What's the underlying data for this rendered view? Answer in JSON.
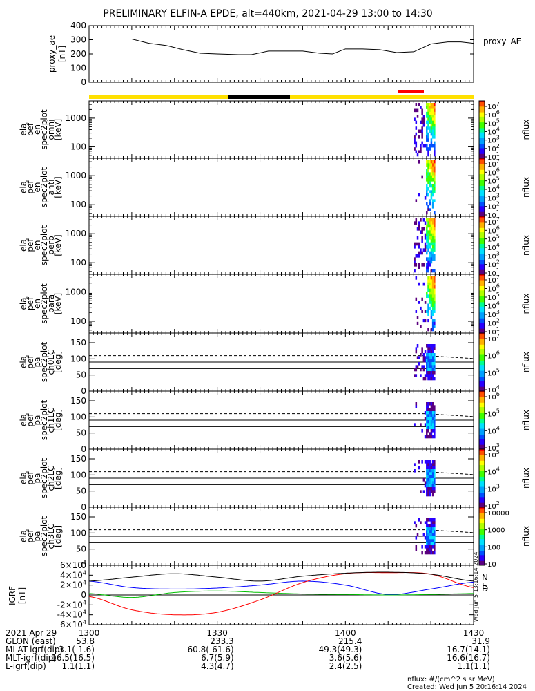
{
  "title": "PRELIMINARY ELFIN-A EPDE, alt=440km, 2021-04-29 13:00 to 14:30",
  "colors": {
    "yellow_bar": "#ffe000",
    "black_bar": "#000000",
    "red_bar": "#ff0000",
    "igrf_n": "#0000ff",
    "igrf_e": "#00c000",
    "igrf_d": "#ff0000",
    "igrf_total": "#000000"
  },
  "footer": {
    "rows": [
      {
        "label": "2021 Apr 29",
        "values": [
          "1300",
          "1330",
          "1400",
          "1430"
        ]
      },
      {
        "label": "GLON (east)",
        "values": [
          "53.8",
          "233.3",
          "215.4",
          "31.9"
        ]
      },
      {
        "label": "MLAT-igrf(dip)",
        "values": [
          "3.1(-1.6)",
          "-60.8(-61.6)",
          "49.3(49.3)",
          "16.7(14.1)"
        ]
      },
      {
        "label": "MLT-igrf(dip)",
        "values": [
          "16.5(16.5)",
          "6.7(5.9)",
          "3.6(5.6)",
          "16.6(16.7)"
        ]
      },
      {
        "label": "L-igrf(dip)",
        "values": [
          "1.1(1.1)",
          "4.3(4.7)",
          "2.4(2.5)",
          "1.1(1.1)"
        ]
      }
    ],
    "units_note": "nflux: #/(cm^2 s sr MeV)",
    "created": "Created: Wed Jun  5 20:16:14 2024",
    "vertical_stamp": "Wed Jun  5 13:16:14 2024"
  },
  "chart_data": [
    {
      "type": "line",
      "name": "proxy_AE",
      "ylabel": "proxy_ae [nT]",
      "legend": "proxy_AE",
      "ylim": [
        0,
        400
      ],
      "yticks": [
        "0",
        "100",
        "200",
        "300",
        "400"
      ],
      "x_minutes": [
        0,
        5,
        10,
        14,
        18,
        22,
        26,
        30,
        35,
        38,
        42,
        46,
        50,
        54,
        57,
        60,
        64,
        68,
        72,
        76,
        80,
        84,
        87,
        90
      ],
      "values": [
        305,
        305,
        305,
        275,
        260,
        230,
        205,
        200,
        195,
        195,
        220,
        220,
        220,
        205,
        200,
        235,
        235,
        230,
        210,
        215,
        270,
        285,
        285,
        275
      ]
    },
    {
      "type": "heatmap",
      "name": "ela_pef_en_spec2plot_omni",
      "ylabel": "ela pef en spec2plot omni [keV]",
      "yscale": "log",
      "yticks": [
        "100",
        "1000"
      ],
      "colorbar_ticks": [
        "10^7",
        "10^6",
        "10^5",
        "10^4",
        "10^3",
        "10^2",
        "10^1"
      ],
      "colorbar_label": "nflux",
      "active_interval_minutes": [
        76,
        81
      ]
    },
    {
      "type": "heatmap",
      "name": "ela_pef_en_spec2plot_anti",
      "ylabel": "ela pef en spec2plot anti [keV]",
      "yscale": "log",
      "yticks": [
        "100",
        "1000"
      ],
      "colorbar_ticks": [
        "10^7",
        "10^6",
        "10^5",
        "10^4",
        "10^3",
        "10^2",
        "10^1"
      ],
      "colorbar_label": "nflux",
      "active_interval_minutes": [
        76,
        81
      ]
    },
    {
      "type": "heatmap",
      "name": "ela_pef_en_spec2plot_perp",
      "ylabel": "ela pef en spec2plot perp [keV]",
      "yscale": "log",
      "yticks": [
        "100",
        "1000"
      ],
      "colorbar_ticks": [
        "10^7",
        "10^6",
        "10^5",
        "10^4",
        "10^3",
        "10^2",
        "10^1"
      ],
      "colorbar_label": "nflux",
      "active_interval_minutes": [
        76,
        81
      ]
    },
    {
      "type": "heatmap",
      "name": "ela_pef_en_spec2plot_para",
      "ylabel": "ela pef en spec2plot para [keV]",
      "yscale": "log",
      "yticks": [
        "100",
        "1000"
      ],
      "colorbar_ticks": [
        "10^7",
        "10^6",
        "10^5",
        "10^4",
        "10^3",
        "10^2",
        "10^1"
      ],
      "colorbar_label": "nflux",
      "active_interval_minutes": [
        76,
        81
      ]
    },
    {
      "type": "heatmap",
      "name": "ela_pef_pa_spec2plot_ch0LC",
      "ylabel": "ela pef pa spec2plot ch0LC [deg]",
      "yticks": [
        "0",
        "50",
        "100",
        "150"
      ],
      "ylim": [
        0,
        180
      ],
      "colorbar_ticks": [
        "10^7",
        "10^6",
        "10^5",
        "10^4"
      ],
      "colorbar_label": "nflux",
      "active_interval_minutes": [
        76,
        81
      ]
    },
    {
      "type": "heatmap",
      "name": "ela_pef_pa_spec2plot_ch1LC",
      "ylabel": "ela pef pa spec2plot ch1LC [deg]",
      "yticks": [
        "0",
        "50",
        "100",
        "150"
      ],
      "ylim": [
        0,
        180
      ],
      "colorbar_ticks": [
        "10^6",
        "10^5",
        "10^4",
        "10^3"
      ],
      "colorbar_label": "nflux",
      "active_interval_minutes": [
        76,
        81
      ]
    },
    {
      "type": "heatmap",
      "name": "ela_pef_pa_spec2plot_ch2LC",
      "ylabel": "ela pef pa spec2plot ch2LC [deg]",
      "yticks": [
        "0",
        "50",
        "100",
        "150"
      ],
      "ylim": [
        0,
        180
      ],
      "colorbar_ticks": [
        "10^5",
        "10^4",
        "10^3",
        "10^2"
      ],
      "colorbar_label": "nflux",
      "active_interval_minutes": [
        76,
        81
      ]
    },
    {
      "type": "heatmap",
      "name": "ela_pef_pa_spec2plot_ch3LC",
      "ylabel": "ela pef pa spec2plot ch3LC [deg]",
      "yticks": [
        "0",
        "50",
        "100",
        "150"
      ],
      "ylim": [
        0,
        180
      ],
      "colorbar_ticks": [
        "10000",
        "1000",
        "100",
        "10"
      ],
      "colorbar_label": "nflux",
      "active_interval_minutes": [
        76,
        81
      ]
    },
    {
      "type": "line",
      "name": "IGRF",
      "ylabel": "IGRF [nT]",
      "ylim": [
        -60000,
        60000
      ],
      "yticks": [
        "-6×10^4",
        "-4×10^4",
        "-2×10^4",
        "0",
        "2×10^4",
        "4×10^4",
        "6×10^4"
      ],
      "legend": [
        "N",
        "E",
        "D"
      ],
      "x_minutes": [
        0,
        10,
        20,
        30,
        40,
        50,
        60,
        70,
        80,
        90
      ],
      "series": [
        {
          "name": "N",
          "values": [
            28000,
            15000,
            12000,
            14000,
            20000,
            28000,
            20000,
            1000,
            12000,
            26000
          ]
        },
        {
          "name": "E",
          "values": [
            3000,
            -5000,
            5000,
            8000,
            5000,
            2000,
            1000,
            0,
            1000,
            3000
          ]
        },
        {
          "name": "D",
          "values": [
            -3000,
            -30000,
            -40000,
            -35000,
            -10000,
            25000,
            43000,
            45000,
            42000,
            15000
          ]
        },
        {
          "name": "",
          "values": [
            28000,
            36000,
            43000,
            36000,
            28000,
            38000,
            44000,
            46000,
            42000,
            28000
          ]
        }
      ]
    }
  ]
}
